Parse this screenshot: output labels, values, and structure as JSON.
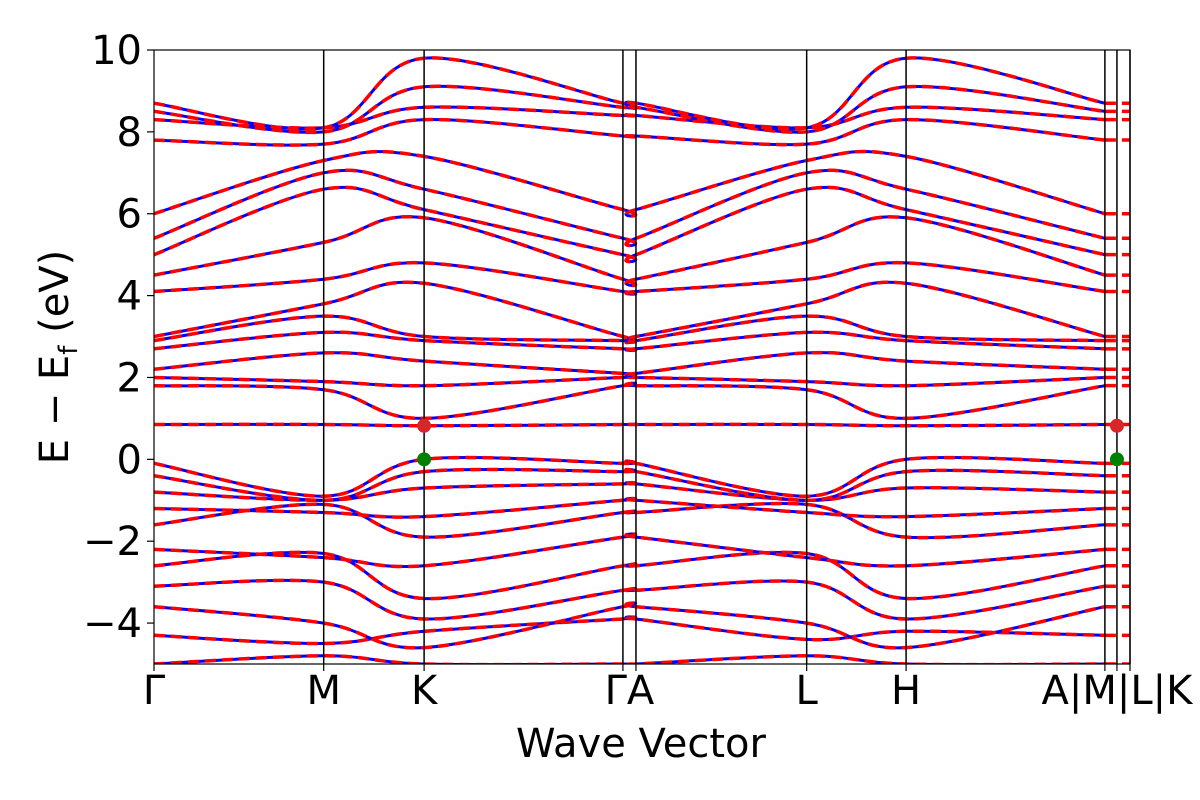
{
  "chart_data": {
    "type": "line",
    "xlabel": "Wave Vector",
    "ylabel": "E − E",
    "ylabel_sub": "f",
    "ylabel_unit": " (eV)",
    "ylim": [
      -5,
      10
    ],
    "yticks": [
      -4,
      -2,
      0,
      2,
      4,
      6,
      8,
      10
    ],
    "ytick_labels": [
      "−4",
      "−2",
      "0",
      "2",
      "4",
      "6",
      "8",
      "10"
    ],
    "xlim": [
      0,
      9.72
    ],
    "kpoints": [
      {
        "label": "Γ",
        "x": 0.0
      },
      {
        "label": "M",
        "x": 1.69
      },
      {
        "label": "K",
        "x": 2.69
      },
      {
        "label": "Γ",
        "x": 4.67
      },
      {
        "label": "A",
        "x": 4.8
      },
      {
        "label": "L",
        "x": 6.5
      },
      {
        "label": "H",
        "x": 7.49
      },
      {
        "label": "A",
        "x": 9.47
      },
      {
        "label": "M",
        "x": 9.47
      },
      {
        "label": "L",
        "x": 9.59
      },
      {
        "label": "K",
        "x": 9.72
      }
    ],
    "xtick_display": [
      {
        "text": "Γ",
        "x": 0.0
      },
      {
        "text": "M",
        "x": 1.69
      },
      {
        "text": "K",
        "x": 2.69
      },
      {
        "text": "ΓA",
        "x": 4.735
      },
      {
        "text": "L",
        "x": 6.5
      },
      {
        "text": "H",
        "x": 7.49
      },
      {
        "text": "A|M|L|K",
        "x": 9.59
      }
    ],
    "vertical_lines_x": [
      1.69,
      2.69,
      4.67,
      4.8,
      6.5,
      7.49,
      9.47,
      9.59,
      9.72
    ],
    "series": [
      {
        "color": "#0000ff",
        "style": "solid"
      },
      {
        "color": "#ff0000",
        "style": "dashed"
      }
    ],
    "band_edges": [
      {
        "role": "vbm",
        "x": 2.69,
        "y": 0.0,
        "color": "#008000"
      },
      {
        "role": "cbm",
        "x": 2.69,
        "y": 0.82,
        "color": "#d62728"
      },
      {
        "role": "vbm",
        "x": 9.59,
        "y": 0.0,
        "color": "#008000"
      },
      {
        "role": "cbm",
        "x": 9.59,
        "y": 0.82,
        "color": "#d62728"
      }
    ],
    "bands": [
      {
        "x": [
          0,
          1.69,
          2.69,
          4.67,
          4.8,
          6.5,
          7.49,
          9.47
        ],
        "y": [
          -5.0,
          -4.8,
          -5.0,
          -5.0,
          -5.0,
          -4.8,
          -5.0,
          -5.0
        ]
      },
      {
        "x": [
          0,
          1.69,
          2.69,
          4.67,
          4.8,
          6.5,
          7.49,
          9.47
        ],
        "y": [
          -4.3,
          -4.5,
          -4.2,
          -3.9,
          -3.9,
          -4.4,
          -4.2,
          -4.3
        ]
      },
      {
        "x": [
          0,
          1.69,
          2.69,
          4.67,
          4.8,
          6.5,
          7.49,
          9.47
        ],
        "y": [
          -3.6,
          -4.0,
          -4.6,
          -3.6,
          -3.6,
          -4.0,
          -4.6,
          -3.6
        ]
      },
      {
        "x": [
          0,
          1.69,
          2.69,
          4.67,
          4.8,
          6.5,
          7.49,
          9.47
        ],
        "y": [
          -3.1,
          -3.0,
          -3.9,
          -3.2,
          -3.2,
          -3.0,
          -3.9,
          -3.1
        ]
      },
      {
        "x": [
          0,
          1.69,
          2.69,
          4.67,
          4.8,
          6.5,
          7.49,
          9.47
        ],
        "y": [
          -2.6,
          -2.3,
          -3.4,
          -2.6,
          -2.6,
          -2.3,
          -3.4,
          -2.6
        ]
      },
      {
        "x": [
          0,
          1.69,
          2.69,
          4.67,
          4.8,
          6.5,
          7.49,
          9.47
        ],
        "y": [
          -2.2,
          -2.4,
          -2.6,
          -1.9,
          -1.9,
          -2.4,
          -2.6,
          -2.2
        ]
      },
      {
        "x": [
          0,
          1.69,
          2.69,
          4.67,
          4.8,
          6.5,
          7.49,
          9.47
        ],
        "y": [
          -1.6,
          -1.1,
          -1.9,
          -1.3,
          -1.3,
          -1.1,
          -1.9,
          -1.6
        ]
      },
      {
        "x": [
          0,
          1.69,
          2.69,
          4.67,
          4.8,
          6.5,
          7.49,
          9.47
        ],
        "y": [
          -1.2,
          -1.3,
          -1.4,
          -1.0,
          -1.0,
          -1.3,
          -1.4,
          -1.2
        ]
      },
      {
        "x": [
          0,
          1.69,
          2.69,
          4.67,
          4.8,
          6.5,
          7.49,
          9.47
        ],
        "y": [
          -0.8,
          -1.0,
          -0.7,
          -0.6,
          -0.6,
          -1.0,
          -0.7,
          -0.8
        ]
      },
      {
        "x": [
          0,
          1.69,
          2.69,
          4.67,
          4.8,
          6.5,
          7.49,
          9.47
        ],
        "y": [
          -0.4,
          -1.0,
          -0.3,
          -0.3,
          -0.3,
          -1.0,
          -0.3,
          -0.4
        ]
      },
      {
        "x": [
          0,
          1.69,
          2.69,
          4.67,
          4.8,
          6.5,
          7.49,
          9.47
        ],
        "y": [
          -0.1,
          -0.9,
          0.0,
          -0.1,
          -0.1,
          -0.9,
          0.0,
          -0.1
        ]
      },
      {
        "x": [
          0,
          1.69,
          2.69,
          4.67,
          4.8,
          6.5,
          7.49,
          9.47
        ],
        "y": [
          0.85,
          0.85,
          0.82,
          0.85,
          0.85,
          0.85,
          0.82,
          0.85
        ]
      },
      {
        "x": [
          0,
          1.69,
          2.69,
          4.67,
          4.8,
          6.5,
          7.49,
          9.47
        ],
        "y": [
          1.8,
          1.7,
          1.0,
          1.8,
          1.8,
          1.7,
          1.0,
          1.8
        ]
      },
      {
        "x": [
          0,
          1.69,
          2.69,
          4.67,
          4.8,
          6.5,
          7.49,
          9.47
        ],
        "y": [
          2.0,
          1.9,
          1.8,
          2.0,
          2.0,
          1.9,
          1.8,
          2.0
        ]
      },
      {
        "x": [
          0,
          1.69,
          2.69,
          4.67,
          4.8,
          6.5,
          7.49,
          9.47
        ],
        "y": [
          2.2,
          2.6,
          2.4,
          2.1,
          2.1,
          2.6,
          2.4,
          2.2
        ]
      },
      {
        "x": [
          0,
          1.69,
          2.69,
          4.67,
          4.8,
          6.5,
          7.49,
          9.47
        ],
        "y": [
          2.7,
          3.1,
          2.9,
          2.7,
          2.7,
          3.1,
          2.9,
          2.7
        ]
      },
      {
        "x": [
          0,
          1.69,
          2.69,
          4.67,
          4.8,
          6.5,
          7.49,
          9.47
        ],
        "y": [
          2.9,
          3.5,
          3.0,
          2.9,
          2.9,
          3.5,
          3.0,
          2.9
        ]
      },
      {
        "x": [
          0,
          1.69,
          2.69,
          4.67,
          4.8,
          6.5,
          7.49,
          9.47
        ],
        "y": [
          3.0,
          3.8,
          4.3,
          3.0,
          3.0,
          3.8,
          4.3,
          3.0
        ]
      },
      {
        "x": [
          0,
          1.69,
          2.69,
          4.67,
          4.8,
          6.5,
          7.49,
          9.47
        ],
        "y": [
          4.1,
          4.4,
          4.8,
          4.1,
          4.1,
          4.4,
          4.8,
          4.1
        ]
      },
      {
        "x": [
          0,
          1.69,
          2.69,
          4.67,
          4.8,
          6.5,
          7.49,
          9.47
        ],
        "y": [
          4.5,
          5.3,
          5.9,
          4.4,
          4.4,
          5.3,
          5.9,
          4.5
        ]
      },
      {
        "x": [
          0,
          1.69,
          2.69,
          4.67,
          4.8,
          6.5,
          7.49,
          9.47
        ],
        "y": [
          5.0,
          6.6,
          6.1,
          5.0,
          5.0,
          6.6,
          6.1,
          5.0
        ]
      },
      {
        "x": [
          0,
          1.69,
          2.69,
          4.67,
          4.8,
          6.5,
          7.49,
          9.47
        ],
        "y": [
          5.4,
          7.0,
          6.6,
          5.4,
          5.4,
          7.0,
          6.6,
          5.4
        ]
      },
      {
        "x": [
          0,
          1.69,
          2.69,
          4.67,
          4.8,
          6.5,
          7.49,
          9.47
        ],
        "y": [
          6.0,
          7.3,
          7.4,
          6.1,
          6.1,
          7.3,
          7.4,
          6.0
        ]
      },
      {
        "x": [
          0,
          1.69,
          2.69,
          4.67,
          4.8,
          6.5,
          7.49,
          9.47
        ],
        "y": [
          7.8,
          7.7,
          8.3,
          7.9,
          7.9,
          7.7,
          8.3,
          7.8
        ]
      },
      {
        "x": [
          0,
          1.69,
          2.69,
          4.67,
          4.8,
          6.5,
          7.49,
          9.47
        ],
        "y": [
          8.3,
          8.1,
          8.6,
          8.4,
          8.4,
          8.1,
          8.6,
          8.3
        ]
      },
      {
        "x": [
          0,
          1.69,
          2.69,
          4.67,
          4.8,
          6.5,
          7.49,
          9.47
        ],
        "y": [
          8.5,
          8.0,
          9.1,
          8.6,
          8.6,
          8.0,
          9.1,
          8.5
        ]
      },
      {
        "x": [
          0,
          1.69,
          2.69,
          4.67,
          4.8,
          6.5,
          7.49,
          9.47
        ],
        "y": [
          8.7,
          8.1,
          9.8,
          8.7,
          8.7,
          8.1,
          9.8,
          8.7
        ]
      }
    ]
  }
}
